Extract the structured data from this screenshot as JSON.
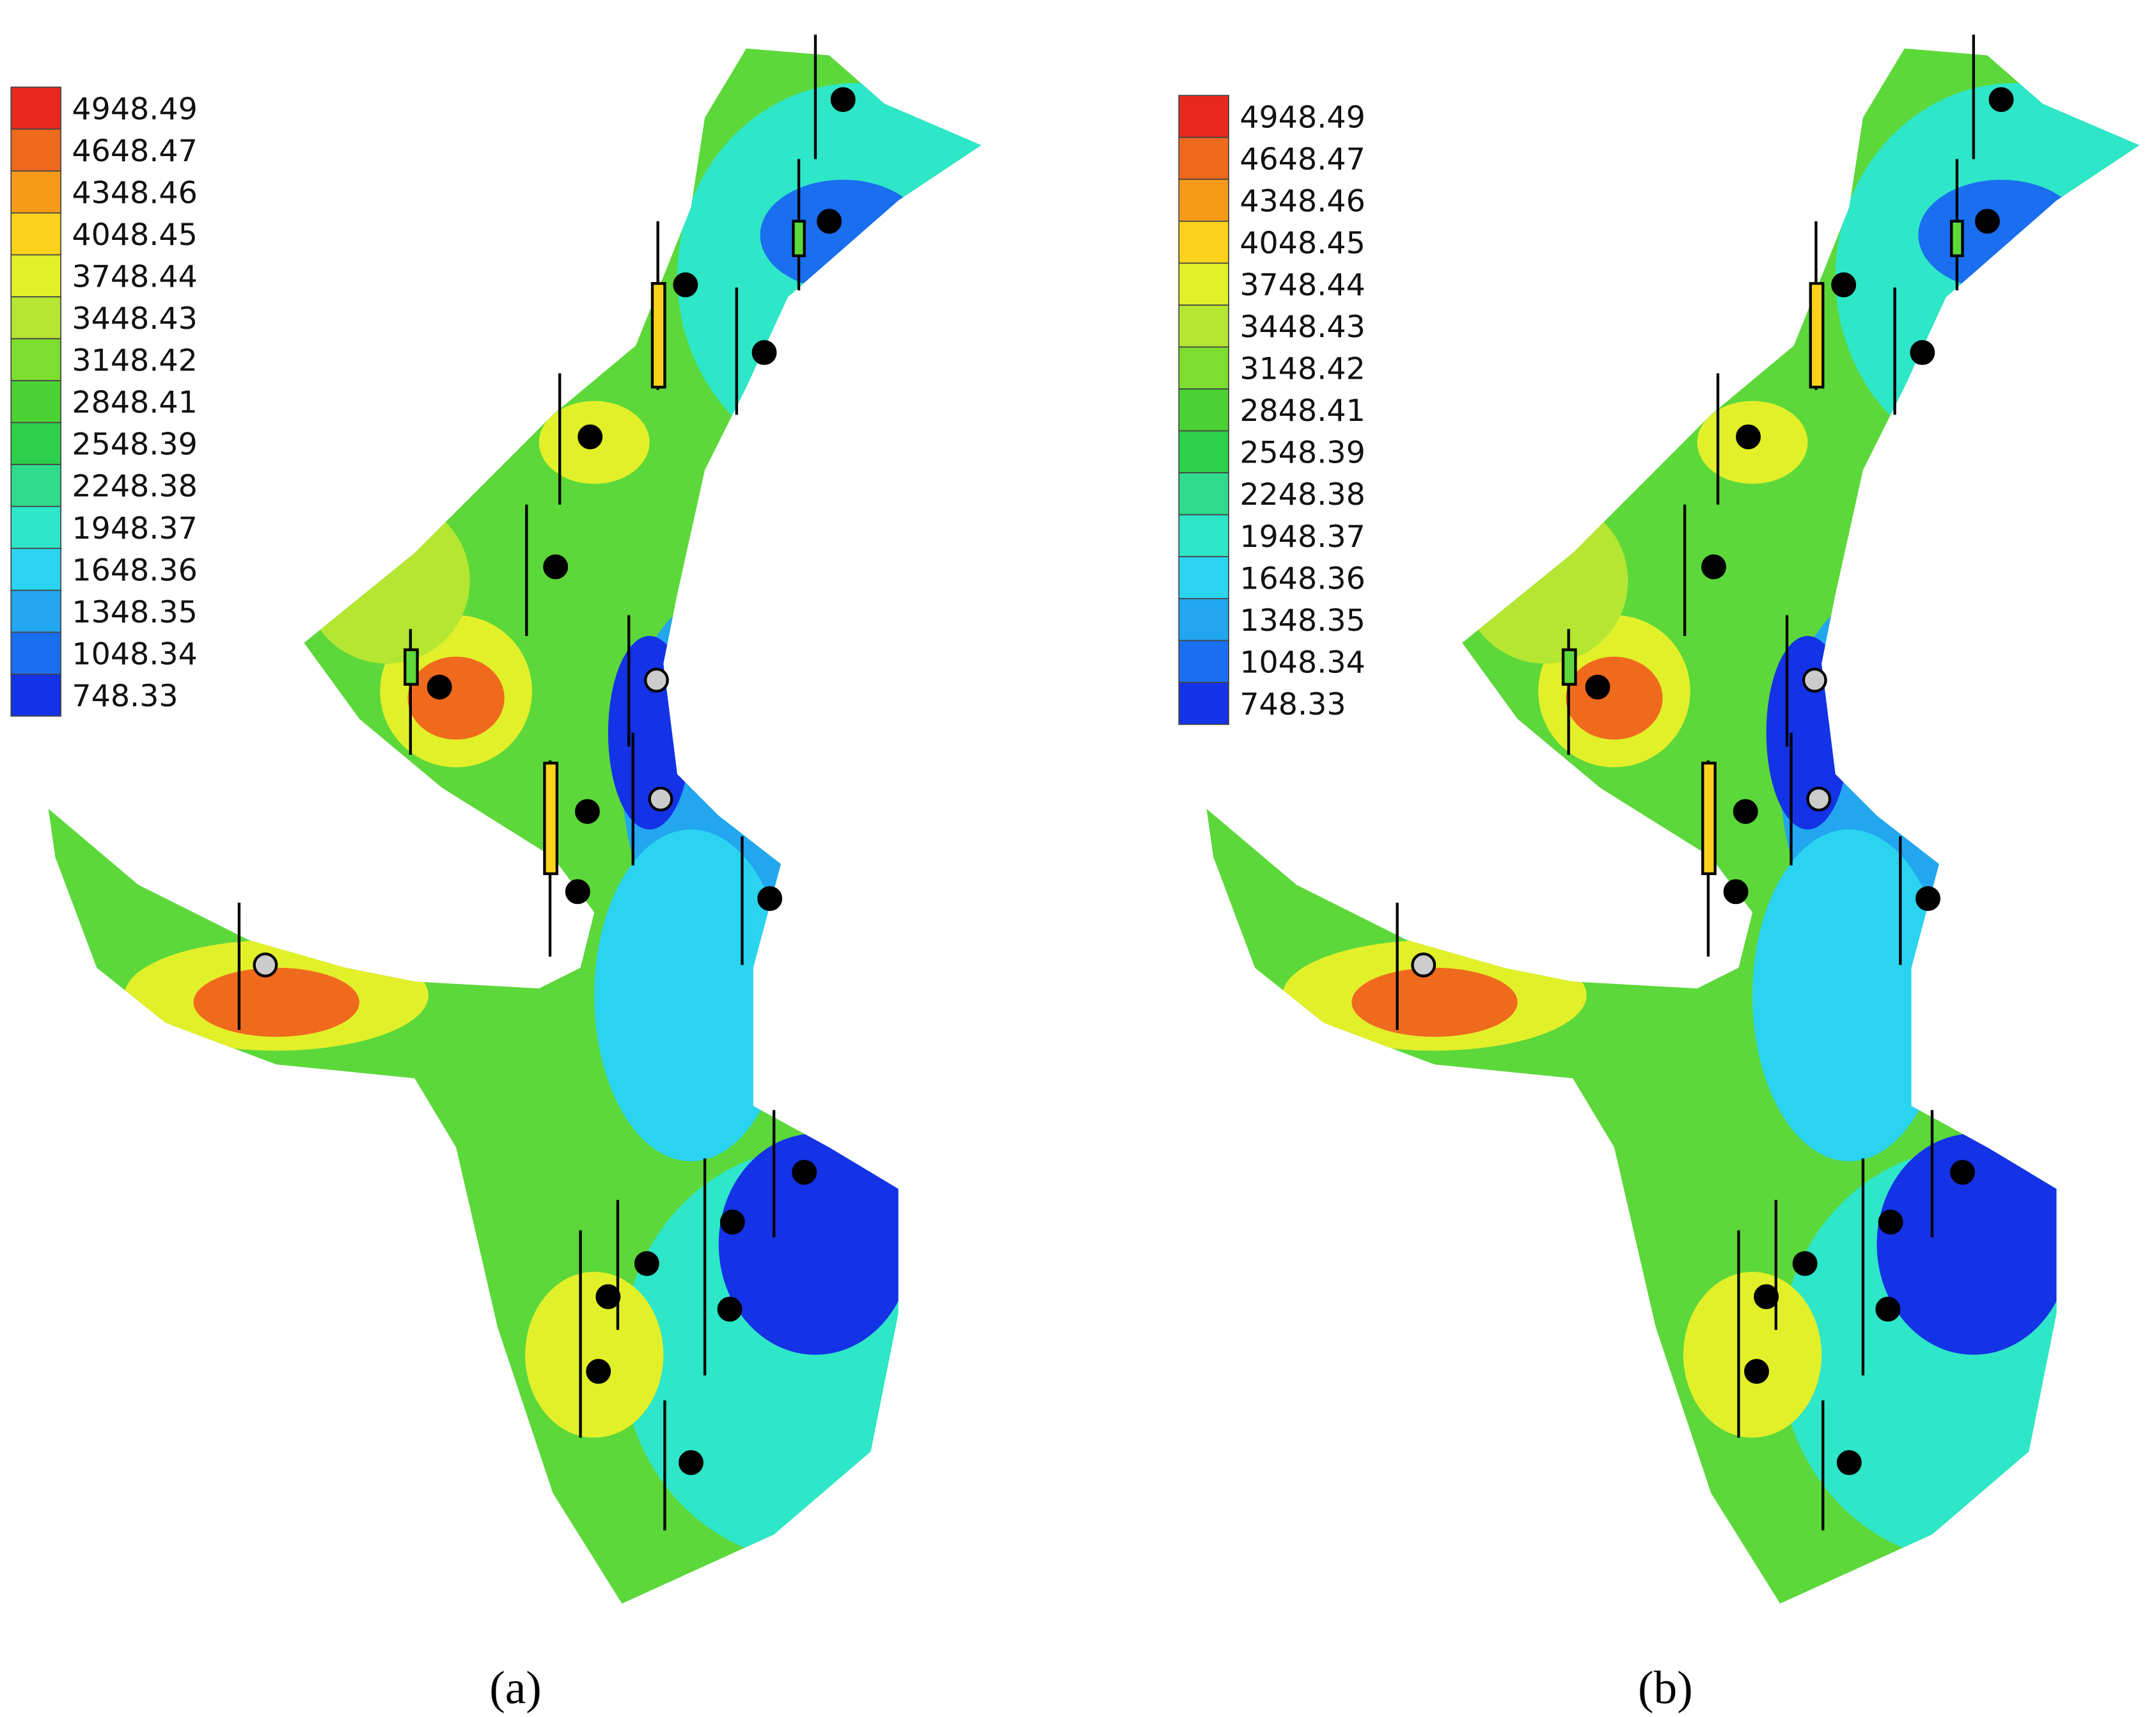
{
  "legend": {
    "labels": [
      "4948.49",
      "4648.47",
      "4348.46",
      "4048.45",
      "3748.44",
      "3448.43",
      "3148.42",
      "2848.41",
      "2548.39",
      "2248.38",
      "1948.37",
      "1648.36",
      "1348.35",
      "1048.34",
      "748.33"
    ],
    "colors": [
      "#e8281e",
      "#f06a1e",
      "#f79a1a",
      "#fcd21c",
      "#e2f02a",
      "#b4e632",
      "#7ede2e",
      "#4ad232",
      "#2cd04a",
      "#30dc8c",
      "#2ee6c8",
      "#2ad4f0",
      "#22a6f0",
      "#1a6ef0",
      "#1432e6"
    ]
  },
  "panels": [
    {
      "caption": "(a)"
    },
    {
      "caption": "(b)"
    }
  ]
}
